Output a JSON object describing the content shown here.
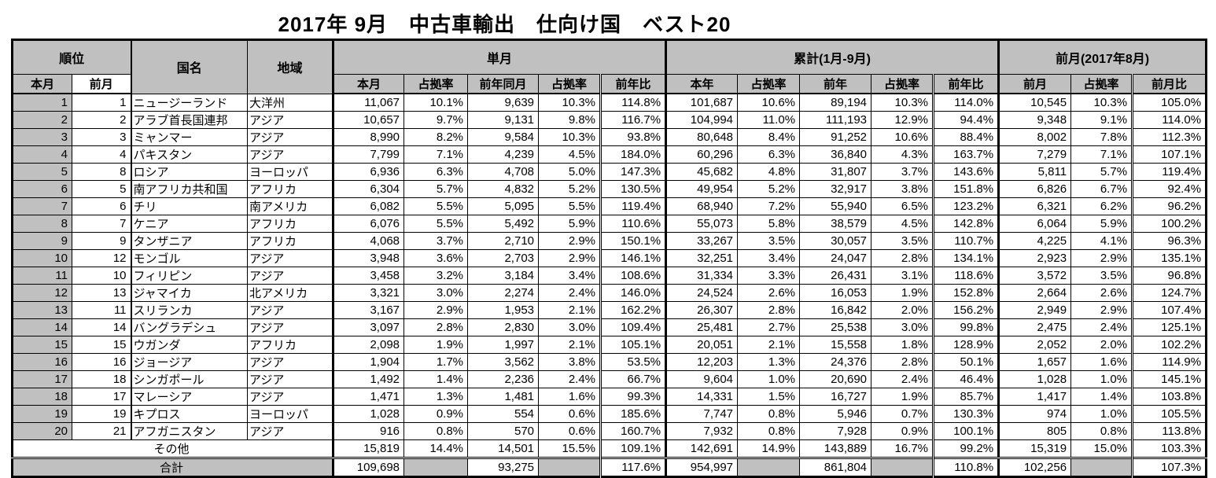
{
  "title": "2017年 9月　中古車輸出　仕向け国　ベスト20",
  "colors": {
    "header_bg": "#c0c0c0",
    "border": "#000000",
    "cell_bg": "#ffffff"
  },
  "table": {
    "header": {
      "rank": "順位",
      "rank_sub": [
        "本月",
        "前月"
      ],
      "country": "国名",
      "region": "地域",
      "groups": [
        {
          "label": "単月",
          "cols": [
            "本月",
            "占拠率",
            "前年同月",
            "占拠率",
            "前年比"
          ]
        },
        {
          "label": "累計(1月-9月)",
          "cols": [
            "本年",
            "占拠率",
            "前年",
            "占拠率",
            "前年比"
          ]
        },
        {
          "label": "前月(2017年8月)",
          "cols": [
            "前月",
            "占拠率",
            "前月比"
          ]
        }
      ]
    },
    "rows": [
      {
        "rank": "1",
        "prev_rank": "1",
        "country": "ニュージーランド",
        "region": "大洋州",
        "monthly": [
          "11,067",
          "10.1%",
          "9,639",
          "10.3%",
          "114.8%"
        ],
        "cumulative": [
          "101,687",
          "10.6%",
          "89,194",
          "10.3%",
          "114.0%"
        ],
        "prev": [
          "10,545",
          "10.3%",
          "105.0%"
        ]
      },
      {
        "rank": "2",
        "prev_rank": "2",
        "country": "アラブ首長国連邦",
        "region": "アジア",
        "monthly": [
          "10,657",
          "9.7%",
          "9,131",
          "9.8%",
          "116.7%"
        ],
        "cumulative": [
          "104,994",
          "11.0%",
          "111,193",
          "12.9%",
          "94.4%"
        ],
        "prev": [
          "9,348",
          "9.1%",
          "114.0%"
        ]
      },
      {
        "rank": "3",
        "prev_rank": "3",
        "country": "ミャンマー",
        "region": "アジア",
        "monthly": [
          "8,990",
          "8.2%",
          "9,584",
          "10.3%",
          "93.8%"
        ],
        "cumulative": [
          "80,648",
          "8.4%",
          "91,252",
          "10.6%",
          "88.4%"
        ],
        "prev": [
          "8,002",
          "7.8%",
          "112.3%"
        ]
      },
      {
        "rank": "4",
        "prev_rank": "4",
        "country": "パキスタン",
        "region": "アジア",
        "monthly": [
          "7,799",
          "7.1%",
          "4,239",
          "4.5%",
          "184.0%"
        ],
        "cumulative": [
          "60,296",
          "6.3%",
          "36,840",
          "4.3%",
          "163.7%"
        ],
        "prev": [
          "7,279",
          "7.1%",
          "107.1%"
        ]
      },
      {
        "rank": "5",
        "prev_rank": "8",
        "country": "ロシア",
        "region": "ヨーロッパ",
        "monthly": [
          "6,936",
          "6.3%",
          "4,708",
          "5.0%",
          "147.3%"
        ],
        "cumulative": [
          "45,682",
          "4.8%",
          "31,807",
          "3.7%",
          "143.6%"
        ],
        "prev": [
          "5,811",
          "5.7%",
          "119.4%"
        ]
      },
      {
        "rank": "6",
        "prev_rank": "5",
        "country": "南アフリカ共和国",
        "region": "アフリカ",
        "monthly": [
          "6,304",
          "5.7%",
          "4,832",
          "5.2%",
          "130.5%"
        ],
        "cumulative": [
          "49,954",
          "5.2%",
          "32,917",
          "3.8%",
          "151.8%"
        ],
        "prev": [
          "6,826",
          "6.7%",
          "92.4%"
        ]
      },
      {
        "rank": "7",
        "prev_rank": "6",
        "country": "チリ",
        "region": "南アメリカ",
        "monthly": [
          "6,082",
          "5.5%",
          "5,095",
          "5.5%",
          "119.4%"
        ],
        "cumulative": [
          "68,940",
          "7.2%",
          "55,940",
          "6.5%",
          "123.2%"
        ],
        "prev": [
          "6,321",
          "6.2%",
          "96.2%"
        ]
      },
      {
        "rank": "8",
        "prev_rank": "7",
        "country": "ケニア",
        "region": "アフリカ",
        "monthly": [
          "6,076",
          "5.5%",
          "5,492",
          "5.9%",
          "110.6%"
        ],
        "cumulative": [
          "55,073",
          "5.8%",
          "38,579",
          "4.5%",
          "142.8%"
        ],
        "prev": [
          "6,064",
          "5.9%",
          "100.2%"
        ]
      },
      {
        "rank": "9",
        "prev_rank": "9",
        "country": "タンザニア",
        "region": "アフリカ",
        "monthly": [
          "4,068",
          "3.7%",
          "2,710",
          "2.9%",
          "150.1%"
        ],
        "cumulative": [
          "33,267",
          "3.5%",
          "30,057",
          "3.5%",
          "110.7%"
        ],
        "prev": [
          "4,225",
          "4.1%",
          "96.3%"
        ]
      },
      {
        "rank": "10",
        "prev_rank": "12",
        "country": "モンゴル",
        "region": "アジア",
        "monthly": [
          "3,948",
          "3.6%",
          "2,703",
          "2.9%",
          "146.1%"
        ],
        "cumulative": [
          "32,251",
          "3.4%",
          "24,047",
          "2.8%",
          "134.1%"
        ],
        "prev": [
          "2,923",
          "2.9%",
          "135.1%"
        ]
      },
      {
        "rank": "11",
        "prev_rank": "10",
        "country": "フィリピン",
        "region": "アジア",
        "monthly": [
          "3,458",
          "3.2%",
          "3,184",
          "3.4%",
          "108.6%"
        ],
        "cumulative": [
          "31,334",
          "3.3%",
          "26,431",
          "3.1%",
          "118.6%"
        ],
        "prev": [
          "3,572",
          "3.5%",
          "96.8%"
        ]
      },
      {
        "rank": "12",
        "prev_rank": "13",
        "country": "ジャマイカ",
        "region": "北アメリカ",
        "monthly": [
          "3,321",
          "3.0%",
          "2,274",
          "2.4%",
          "146.0%"
        ],
        "cumulative": [
          "24,524",
          "2.6%",
          "16,053",
          "1.9%",
          "152.8%"
        ],
        "prev": [
          "2,664",
          "2.6%",
          "124.7%"
        ]
      },
      {
        "rank": "13",
        "prev_rank": "11",
        "country": "スリランカ",
        "region": "アジア",
        "monthly": [
          "3,167",
          "2.9%",
          "1,953",
          "2.1%",
          "162.2%"
        ],
        "cumulative": [
          "26,307",
          "2.8%",
          "16,842",
          "2.0%",
          "156.2%"
        ],
        "prev": [
          "2,949",
          "2.9%",
          "107.4%"
        ]
      },
      {
        "rank": "14",
        "prev_rank": "14",
        "country": "バングラデシュ",
        "region": "アジア",
        "monthly": [
          "3,097",
          "2.8%",
          "2,830",
          "3.0%",
          "109.4%"
        ],
        "cumulative": [
          "25,481",
          "2.7%",
          "25,538",
          "3.0%",
          "99.8%"
        ],
        "prev": [
          "2,475",
          "2.4%",
          "125.1%"
        ]
      },
      {
        "rank": "15",
        "prev_rank": "15",
        "country": "ウガンダ",
        "region": "アフリカ",
        "monthly": [
          "2,098",
          "1.9%",
          "1,997",
          "2.1%",
          "105.1%"
        ],
        "cumulative": [
          "20,051",
          "2.1%",
          "15,558",
          "1.8%",
          "128.9%"
        ],
        "prev": [
          "2,052",
          "2.0%",
          "102.2%"
        ]
      },
      {
        "rank": "16",
        "prev_rank": "16",
        "country": "ジョージア",
        "region": "アジア",
        "monthly": [
          "1,904",
          "1.7%",
          "3,562",
          "3.8%",
          "53.5%"
        ],
        "cumulative": [
          "12,203",
          "1.3%",
          "24,376",
          "2.8%",
          "50.1%"
        ],
        "prev": [
          "1,657",
          "1.6%",
          "114.9%"
        ]
      },
      {
        "rank": "17",
        "prev_rank": "18",
        "country": "シンガポール",
        "region": "アジア",
        "monthly": [
          "1,492",
          "1.4%",
          "2,236",
          "2.4%",
          "66.7%"
        ],
        "cumulative": [
          "9,604",
          "1.0%",
          "20,690",
          "2.4%",
          "46.4%"
        ],
        "prev": [
          "1,028",
          "1.0%",
          "145.1%"
        ]
      },
      {
        "rank": "18",
        "prev_rank": "17",
        "country": "マレーシア",
        "region": "アジア",
        "monthly": [
          "1,471",
          "1.3%",
          "1,481",
          "1.6%",
          "99.3%"
        ],
        "cumulative": [
          "14,331",
          "1.5%",
          "16,727",
          "1.9%",
          "85.7%"
        ],
        "prev": [
          "1,417",
          "1.4%",
          "103.8%"
        ]
      },
      {
        "rank": "19",
        "prev_rank": "19",
        "country": "キプロス",
        "region": "ヨーロッパ",
        "monthly": [
          "1,028",
          "0.9%",
          "554",
          "0.6%",
          "185.6%"
        ],
        "cumulative": [
          "7,747",
          "0.8%",
          "5,946",
          "0.7%",
          "130.3%"
        ],
        "prev": [
          "974",
          "1.0%",
          "105.5%"
        ]
      },
      {
        "rank": "20",
        "prev_rank": "21",
        "country": "アフガニスタン",
        "region": "アジア",
        "monthly": [
          "916",
          "0.8%",
          "570",
          "0.6%",
          "160.7%"
        ],
        "cumulative": [
          "7,932",
          "0.8%",
          "7,928",
          "0.9%",
          "100.1%"
        ],
        "prev": [
          "805",
          "0.8%",
          "113.8%"
        ]
      }
    ],
    "others": {
      "label": "その他",
      "monthly": [
        "15,819",
        "14.4%",
        "14,501",
        "15.5%",
        "109.1%"
      ],
      "cumulative": [
        "142,691",
        "14.9%",
        "143,889",
        "16.7%",
        "99.2%"
      ],
      "prev": [
        "15,319",
        "15.0%",
        "103.3%"
      ]
    },
    "total": {
      "label": "合計",
      "monthly": [
        "109,698",
        "",
        "93,275",
        "",
        "117.6%"
      ],
      "cumulative": [
        "954,997",
        "",
        "861,804",
        "",
        "110.8%"
      ],
      "prev": [
        "102,256",
        "",
        "107.3%"
      ]
    }
  }
}
